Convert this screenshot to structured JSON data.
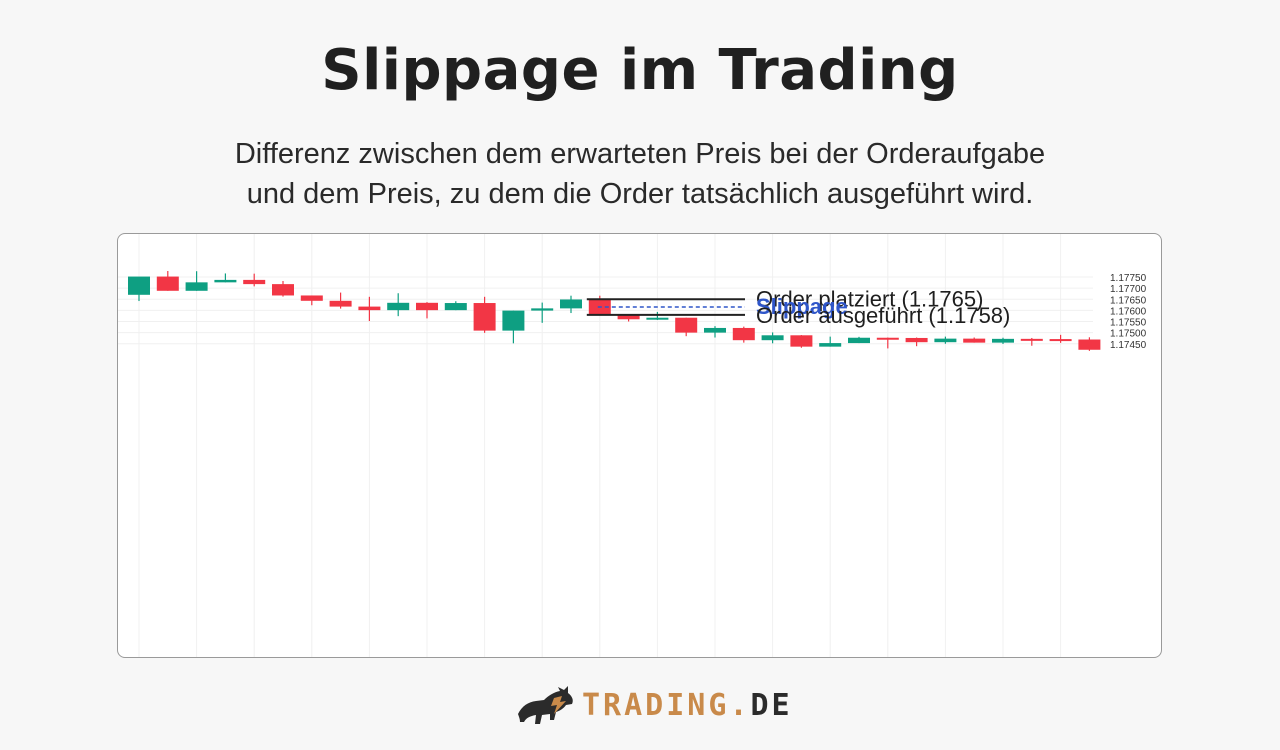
{
  "header": {
    "title": "Slippage im Trading",
    "subtitle_line1": "Differenz zwischen dem erwarteten Preis bei der Orderaufgabe",
    "subtitle_line2": "und dem Preis, zu dem die Order tatsächlich ausgeführt wird."
  },
  "logo": {
    "word": "TRADING",
    "dot": ".",
    "tld": "DE"
  },
  "colors": {
    "up": "#0e9f82",
    "down": "#f23645",
    "slippage": "#2f56c9",
    "annotation_line": "#222222",
    "grid": "#f0f0f0"
  },
  "chart_data": {
    "type": "candlestick",
    "grid": true,
    "y_axis_position": "right",
    "ylim": [
      1.1742,
      1.1778
    ],
    "y_ticks": [
      "1.17750",
      "1.17700",
      "1.17650",
      "1.17600",
      "1.17550",
      "1.17500",
      "1.17450"
    ],
    "y_tick_values": [
      1.1775,
      1.177,
      1.1765,
      1.176,
      1.1755,
      1.175,
      1.1745
    ],
    "candles": [
      {
        "o": 1.1767,
        "h": 1.1775,
        "l": 1.17642,
        "c": 1.17752
      },
      {
        "o": 1.17752,
        "h": 1.17777,
        "l": 1.17688,
        "c": 1.17688
      },
      {
        "o": 1.17688,
        "h": 1.17776,
        "l": 1.17688,
        "c": 1.17726
      },
      {
        "o": 1.17726,
        "h": 1.17766,
        "l": 1.17726,
        "c": 1.17737
      },
      {
        "o": 1.17737,
        "h": 1.17765,
        "l": 1.17708,
        "c": 1.17718
      },
      {
        "o": 1.17718,
        "h": 1.17732,
        "l": 1.17662,
        "c": 1.17667
      },
      {
        "o": 1.17667,
        "h": 1.17667,
        "l": 1.17623,
        "c": 1.17643
      },
      {
        "o": 1.17643,
        "h": 1.1768,
        "l": 1.17608,
        "c": 1.17617
      },
      {
        "o": 1.17617,
        "h": 1.17661,
        "l": 1.17552,
        "c": 1.17601
      },
      {
        "o": 1.17601,
        "h": 1.17677,
        "l": 1.17574,
        "c": 1.17634
      },
      {
        "o": 1.17634,
        "h": 1.17637,
        "l": 1.17564,
        "c": 1.17601
      },
      {
        "o": 1.17601,
        "h": 1.17641,
        "l": 1.17601,
        "c": 1.17633
      },
      {
        "o": 1.17633,
        "h": 1.17661,
        "l": 1.17499,
        "c": 1.17509
      },
      {
        "o": 1.17509,
        "h": 1.17599,
        "l": 1.17452,
        "c": 1.17599
      },
      {
        "o": 1.17599,
        "h": 1.17635,
        "l": 1.17544,
        "c": 1.17609
      },
      {
        "o": 1.17609,
        "h": 1.17666,
        "l": 1.17588,
        "c": 1.17649
      },
      {
        "o": 1.17649,
        "h": 1.17666,
        "l": 1.17579,
        "c": 1.17579
      },
      {
        "o": 1.17579,
        "h": 1.17581,
        "l": 1.1755,
        "c": 1.1756
      },
      {
        "o": 1.1756,
        "h": 1.17593,
        "l": 1.17557,
        "c": 1.17567
      },
      {
        "o": 1.17567,
        "h": 1.17567,
        "l": 1.17484,
        "c": 1.175
      },
      {
        "o": 1.175,
        "h": 1.17529,
        "l": 1.17478,
        "c": 1.17521
      },
      {
        "o": 1.17521,
        "h": 1.17527,
        "l": 1.17455,
        "c": 1.17466
      },
      {
        "o": 1.17466,
        "h": 1.17501,
        "l": 1.17452,
        "c": 1.17488
      },
      {
        "o": 1.17488,
        "h": 1.17489,
        "l": 1.17432,
        "c": 1.17437
      },
      {
        "o": 1.17437,
        "h": 1.17482,
        "l": 1.17437,
        "c": 1.17453
      },
      {
        "o": 1.17453,
        "h": 1.17481,
        "l": 1.17453,
        "c": 1.17477
      },
      {
        "o": 1.17477,
        "h": 1.17478,
        "l": 1.17429,
        "c": 1.17476
      },
      {
        "o": 1.17476,
        "h": 1.17478,
        "l": 1.17439,
        "c": 1.17457
      },
      {
        "o": 1.17457,
        "h": 1.17482,
        "l": 1.1745,
        "c": 1.17473
      },
      {
        "o": 1.17473,
        "h": 1.17478,
        "l": 1.17455,
        "c": 1.17455
      },
      {
        "o": 1.17455,
        "h": 1.17477,
        "l": 1.17449,
        "c": 1.17472
      },
      {
        "o": 1.17472,
        "h": 1.17476,
        "l": 1.17441,
        "c": 1.17471
      },
      {
        "o": 1.17471,
        "h": 1.1749,
        "l": 1.17454,
        "c": 1.17469
      },
      {
        "o": 1.17469,
        "h": 1.17479,
        "l": 1.17418,
        "c": 1.17423
      }
    ],
    "annotations": {
      "placed_label": "Order platziert (1.1765)",
      "placed_price": 1.1765,
      "executed_label": "Order ausgeführt (1.1758)",
      "executed_price": 1.1758,
      "slippage_label": "Slippage",
      "candle_index": 16
    }
  }
}
